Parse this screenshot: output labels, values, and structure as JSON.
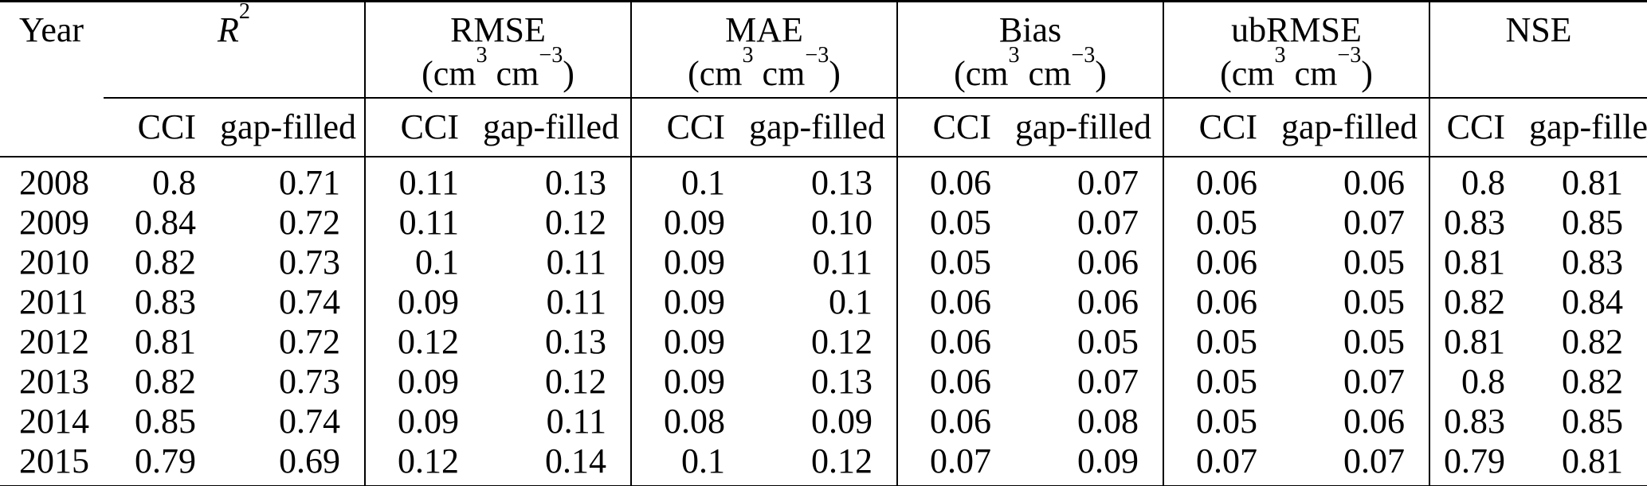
{
  "table": {
    "year_header": "Year",
    "sub_headers": {
      "cci": "CCI",
      "gap_filled": "gap-filled"
    },
    "groups": [
      {
        "title": "R",
        "title_sup": "2",
        "unit": null
      },
      {
        "title": "RMSE",
        "unit": {
          "p1": "(cm",
          "s1": "3",
          "p2": " cm",
          "s2": "−3",
          "p3": ")"
        }
      },
      {
        "title": "MAE",
        "unit": {
          "p1": "(cm",
          "s1": "3",
          "p2": " cm",
          "s2": "−3",
          "p3": ")"
        }
      },
      {
        "title": "Bias",
        "unit": {
          "p1": "(cm",
          "s1": "3",
          "p2": " cm",
          "s2": "−3",
          "p3": ")"
        }
      },
      {
        "title": "ubRMSE",
        "unit": {
          "p1": "(cm",
          "s1": "3",
          "p2": " cm",
          "s2": "−3",
          "p3": ")"
        }
      },
      {
        "title": "NSE",
        "unit": null
      }
    ],
    "rows": [
      {
        "year": "2008",
        "values": [
          "0.8",
          "0.71",
          "0.11",
          "0.13",
          "0.1",
          "0.13",
          "0.06",
          "0.07",
          "0.06",
          "0.06",
          "0.8",
          "0.81"
        ]
      },
      {
        "year": "2009",
        "values": [
          "0.84",
          "0.72",
          "0.11",
          "0.12",
          "0.09",
          "0.10",
          "0.05",
          "0.07",
          "0.05",
          "0.07",
          "0.83",
          "0.85"
        ]
      },
      {
        "year": "2010",
        "values": [
          "0.82",
          "0.73",
          "0.1",
          "0.11",
          "0.09",
          "0.11",
          "0.05",
          "0.06",
          "0.06",
          "0.05",
          "0.81",
          "0.83"
        ]
      },
      {
        "year": "2011",
        "values": [
          "0.83",
          "0.74",
          "0.09",
          "0.11",
          "0.09",
          "0.1",
          "0.06",
          "0.06",
          "0.06",
          "0.05",
          "0.82",
          "0.84"
        ]
      },
      {
        "year": "2012",
        "values": [
          "0.81",
          "0.72",
          "0.12",
          "0.13",
          "0.09",
          "0.12",
          "0.06",
          "0.05",
          "0.05",
          "0.05",
          "0.81",
          "0.82"
        ]
      },
      {
        "year": "2013",
        "values": [
          "0.82",
          "0.73",
          "0.09",
          "0.12",
          "0.09",
          "0.13",
          "0.06",
          "0.07",
          "0.05",
          "0.07",
          "0.8",
          "0.82"
        ]
      },
      {
        "year": "2014",
        "values": [
          "0.85",
          "0.74",
          "0.09",
          "0.11",
          "0.08",
          "0.09",
          "0.06",
          "0.08",
          "0.05",
          "0.06",
          "0.83",
          "0.85"
        ]
      },
      {
        "year": "2015",
        "values": [
          "0.79",
          "0.69",
          "0.12",
          "0.14",
          "0.1",
          "0.12",
          "0.07",
          "0.09",
          "0.07",
          "0.07",
          "0.79",
          "0.81"
        ]
      }
    ]
  },
  "colors": {
    "text": "#000000",
    "rule": "#000000",
    "background": "#ffffff"
  }
}
